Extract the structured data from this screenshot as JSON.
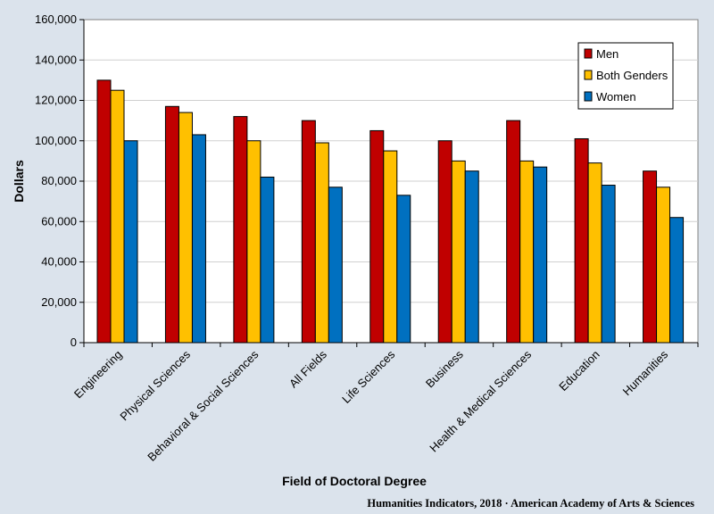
{
  "chart_data": {
    "type": "bar",
    "title": "",
    "xlabel": "Field of Doctoral Degree",
    "ylabel": "Dollars",
    "ylim": [
      0,
      160000
    ],
    "yticks": [
      0,
      20000,
      40000,
      60000,
      80000,
      100000,
      120000,
      140000,
      160000
    ],
    "ytick_labels": [
      "0",
      "20,000",
      "40,000",
      "60,000",
      "80,000",
      "100,000",
      "120,000",
      "140,000",
      "160,000"
    ],
    "grid": true,
    "legend_position": "top-right",
    "categories": [
      "Engineering",
      "Physical Sciences",
      "Behavioral & Social Sciences",
      "All Fields",
      "Life Sciences",
      "Business",
      "Health & Medical Sciences",
      "Education",
      "Humanities"
    ],
    "series": [
      {
        "name": "Men",
        "color": "#c00000",
        "values": [
          130000,
          117000,
          112000,
          110000,
          105000,
          100000,
          110000,
          101000,
          85000
        ]
      },
      {
        "name": "Both Genders",
        "color": "#ffc000",
        "values": [
          125000,
          114000,
          100000,
          99000,
          95000,
          90000,
          90000,
          89000,
          77000
        ]
      },
      {
        "name": "Women",
        "color": "#0070c0",
        "values": [
          100000,
          103000,
          82000,
          77000,
          73000,
          85000,
          87000,
          78000,
          62000
        ]
      }
    ]
  },
  "credit": "Humanities Indicators, 2018 · American Academy of Arts & Sciences"
}
